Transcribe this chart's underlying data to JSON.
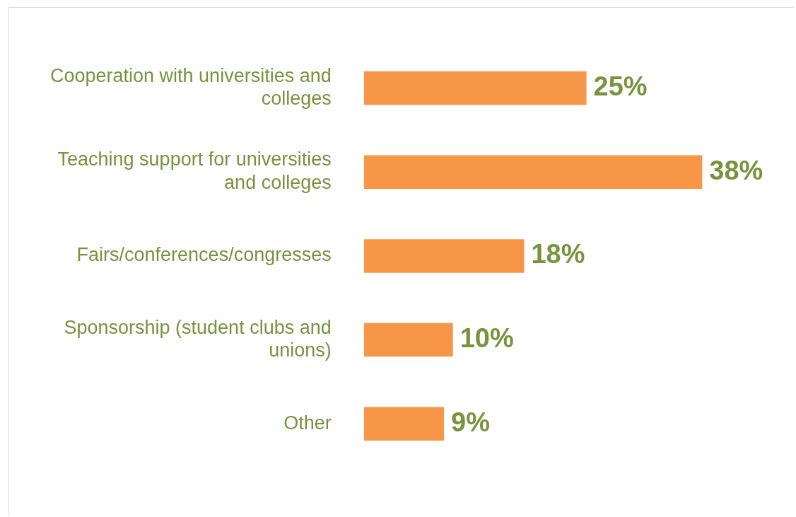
{
  "chart_data": {
    "type": "bar",
    "orientation": "horizontal",
    "categories": [
      "Cooperation with universities and colleges",
      "Teaching support for universities and colleges",
      "Fairs/conferences/congresses",
      "Sponsorship (student clubs and unions)",
      "Other"
    ],
    "values": [
      25,
      38,
      18,
      10,
      9
    ],
    "value_labels": [
      "25%",
      "38%",
      "18%",
      "10%",
      "9%"
    ],
    "color": "#f79646"
  }
}
